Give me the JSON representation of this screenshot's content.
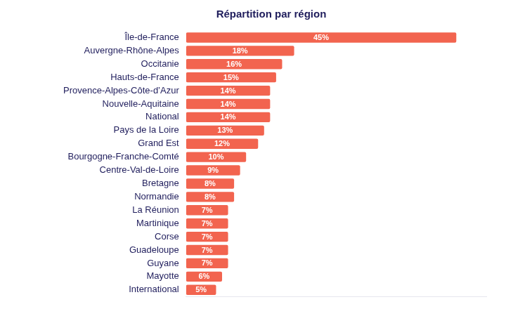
{
  "chart_data": {
    "type": "bar",
    "orientation": "horizontal",
    "title": "Répartition par région",
    "categories": [
      "Île-de-France",
      "Auvergne-Rhône-Alpes",
      "Occitanie",
      "Hauts-de-France",
      "Provence-Alpes-Côte-d’Azur",
      "Nouvelle-Aquitaine",
      "National",
      "Pays de la Loire",
      "Grand Est",
      "Bourgogne-Franche-Comté",
      "Centre-Val-de-Loire",
      "Bretagne",
      "Normandie",
      "La Réunion",
      "Martinique",
      "Corse",
      "Guadeloupe",
      "Guyane",
      "Mayotte",
      "International"
    ],
    "values": [
      45,
      18,
      16,
      15,
      14,
      14,
      14,
      13,
      12,
      10,
      9,
      8,
      8,
      7,
      7,
      7,
      7,
      7,
      6,
      5
    ],
    "value_labels": [
      "45%",
      "18%",
      "16%",
      "15%",
      "14%",
      "14%",
      "14%",
      "13%",
      "12%",
      "10%",
      "9%",
      "8%",
      "8%",
      "7%",
      "7%",
      "7%",
      "7%",
      "7%",
      "6%",
      "5%"
    ],
    "color": "#f2644f",
    "xlim": [
      0,
      50
    ],
    "data_labels": true,
    "tick_labels": "y",
    "grid": false
  }
}
